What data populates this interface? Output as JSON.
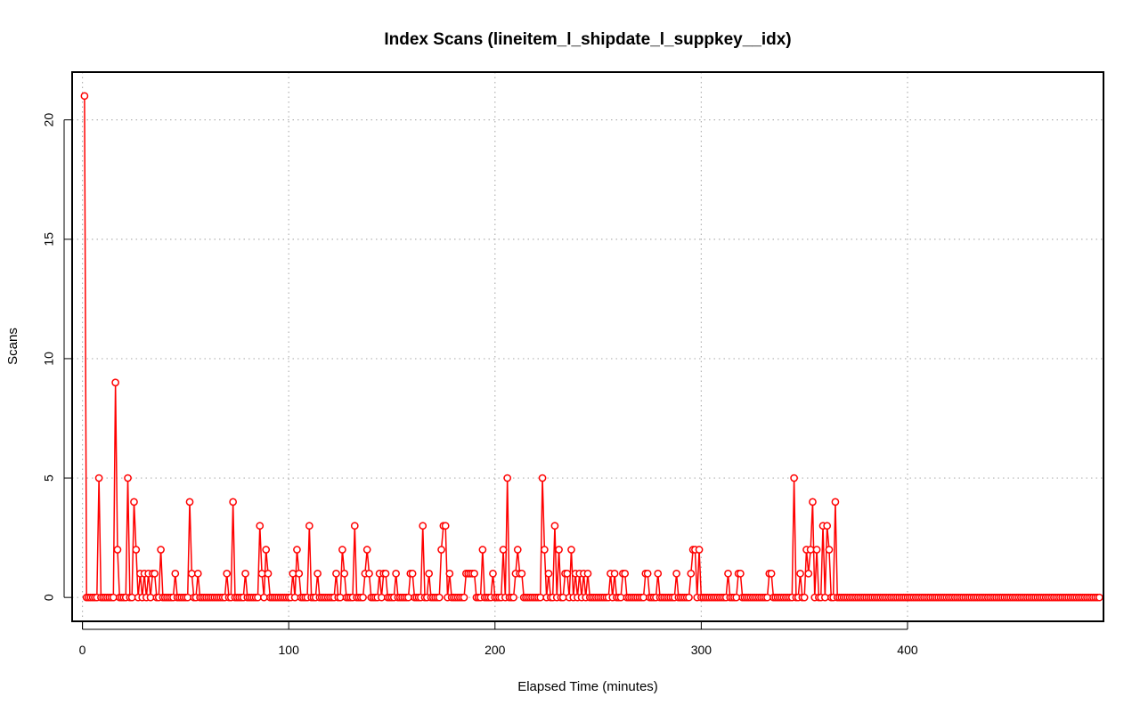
{
  "chart_data": {
    "type": "line",
    "title": "Index Scans (lineitem_l_shipdate_l_suppkey__idx)",
    "xlabel": "Elapsed Time (minutes)",
    "ylabel": "Scans",
    "xlim": [
      -5,
      495
    ],
    "ylim": [
      -1,
      22
    ],
    "xticks": [
      0,
      100,
      200,
      300,
      400
    ],
    "yticks": [
      0,
      5,
      10,
      15,
      20
    ],
    "grid": true,
    "style": {
      "line_color": "#ff0000",
      "marker": "open-circle",
      "grid_color": "#b3b3b3"
    },
    "series": [
      {
        "x_start": 1,
        "x_step": 1,
        "values": [
          21,
          0,
          0,
          0,
          0,
          0,
          0,
          5,
          0,
          0,
          0,
          0,
          0,
          0,
          0,
          9,
          2,
          0,
          0,
          0,
          0,
          5,
          0,
          0,
          4,
          2,
          0,
          1,
          0,
          1,
          0,
          1,
          0,
          1,
          1,
          0,
          0,
          2,
          0,
          0,
          0,
          0,
          0,
          0,
          1,
          0,
          0,
          0,
          0,
          0,
          0,
          4,
          1,
          0,
          0,
          1,
          0,
          0,
          0,
          0,
          0,
          0,
          0,
          0,
          0,
          0,
          0,
          0,
          0,
          1,
          0,
          0,
          4,
          0,
          0,
          0,
          0,
          0,
          1,
          0,
          0,
          0,
          0,
          0,
          0,
          3,
          1,
          0,
          2,
          1,
          0,
          0,
          0,
          0,
          0,
          0,
          0,
          0,
          0,
          0,
          0,
          1,
          0,
          2,
          1,
          0,
          0,
          0,
          0,
          3,
          0,
          0,
          0,
          1,
          0,
          0,
          0,
          0,
          0,
          0,
          0,
          0,
          1,
          0,
          0,
          2,
          1,
          0,
          0,
          0,
          0,
          3,
          0,
          0,
          0,
          0,
          1,
          2,
          1,
          0,
          0,
          0,
          0,
          1,
          0,
          1,
          1,
          0,
          0,
          0,
          0,
          1,
          0,
          0,
          0,
          0,
          0,
          0,
          1,
          1,
          0,
          0,
          0,
          0,
          3,
          0,
          0,
          1,
          0,
          0,
          0,
          0,
          0,
          2,
          3,
          3,
          0,
          1,
          0,
          0,
          0,
          0,
          0,
          0,
          0,
          1,
          1,
          1,
          1,
          1,
          0,
          0,
          0,
          2,
          0,
          0,
          0,
          0,
          1,
          0,
          0,
          0,
          0,
          2,
          0,
          5,
          0,
          0,
          0,
          1,
          2,
          1,
          1,
          0,
          0,
          0,
          0,
          0,
          0,
          0,
          0,
          0,
          5,
          2,
          0,
          1,
          0,
          0,
          3,
          0,
          2,
          0,
          0,
          1,
          1,
          0,
          2,
          0,
          1,
          0,
          1,
          0,
          1,
          0,
          1,
          0,
          0,
          0,
          0,
          0,
          0,
          0,
          0,
          0,
          0,
          1,
          0,
          1,
          0,
          0,
          0,
          1,
          1,
          0,
          0,
          0,
          0,
          0,
          0,
          0,
          0,
          0,
          1,
          1,
          0,
          0,
          0,
          0,
          1,
          0,
          0,
          0,
          0,
          0,
          0,
          0,
          0,
          1,
          0,
          0,
          0,
          0,
          0,
          0,
          1,
          2,
          2,
          0,
          2,
          0,
          0,
          0,
          0,
          0,
          0,
          0,
          0,
          0,
          0,
          0,
          0,
          0,
          1,
          0,
          0,
          0,
          0,
          1,
          1,
          0,
          0,
          0,
          0,
          0,
          0,
          0,
          0,
          0,
          0,
          0,
          0,
          0,
          1,
          1,
          0,
          0,
          0,
          0,
          0,
          0,
          0,
          0,
          0,
          0,
          5,
          0,
          0,
          1,
          0,
          0,
          2,
          1,
          2,
          4,
          0,
          2,
          0,
          0,
          3,
          0,
          3,
          2,
          0,
          0,
          4,
          0,
          0,
          0,
          0,
          0,
          0,
          0,
          0,
          0,
          0,
          0,
          0,
          0,
          0,
          0,
          0,
          0,
          0,
          0,
          0,
          0,
          0,
          0,
          0,
          0,
          0,
          0,
          0,
          0,
          0,
          0,
          0,
          0,
          0,
          0,
          0,
          0,
          0,
          0,
          0,
          0,
          0,
          0,
          0,
          0,
          0,
          0,
          0,
          0,
          0,
          0,
          0,
          0,
          0,
          0,
          0,
          0,
          0,
          0,
          0,
          0,
          0,
          0,
          0,
          0,
          0,
          0,
          0,
          0,
          0,
          0,
          0,
          0,
          0,
          0,
          0,
          0,
          0,
          0,
          0,
          0,
          0,
          0,
          0,
          0,
          0,
          0,
          0,
          0,
          0,
          0,
          0,
          0,
          0,
          0,
          0,
          0,
          0,
          0,
          0,
          0,
          0,
          0,
          0,
          0,
          0,
          0,
          0,
          0,
          0,
          0,
          0,
          0,
          0,
          0,
          0,
          0,
          0,
          0,
          0,
          0,
          0,
          0,
          0,
          0,
          0,
          0,
          0
        ]
      }
    ]
  }
}
